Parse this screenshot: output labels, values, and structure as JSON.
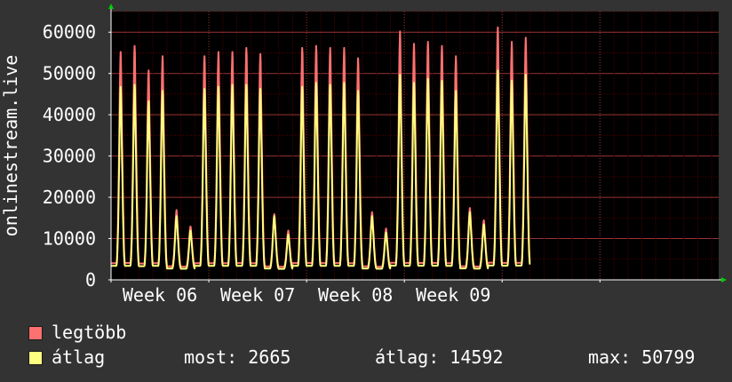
{
  "chart_data": {
    "type": "line",
    "ylabel": "onlinestream.live",
    "ylim": [
      0,
      65000
    ],
    "yticks": [
      0,
      10000,
      20000,
      30000,
      40000,
      50000,
      60000
    ],
    "ytick_labels": [
      "0",
      "10000",
      "20000",
      "30000",
      "40000",
      "50000",
      "60000"
    ],
    "xtick_labels": [
      "Week 06",
      "Week 07",
      "Week 08",
      "Week 09"
    ],
    "x_unit": "day",
    "x_range_days": [
      0,
      43.5
    ],
    "week_label_positions_days": [
      3.5,
      10.5,
      17.5,
      24.5
    ],
    "week_boundaries_days": [
      0,
      7,
      14,
      21,
      28,
      35
    ],
    "grid": true,
    "series": [
      {
        "name": "legtöbb",
        "color": "#ff7070",
        "daily_peaks": [
          55500,
          57000,
          51000,
          54500,
          17000,
          13000,
          54500,
          55500,
          55500,
          56500,
          55000,
          16000,
          12000,
          56500,
          57000,
          56500,
          56500,
          54000,
          16500,
          12500,
          60500,
          57500,
          58000,
          57000,
          54500,
          17500,
          14500,
          61500,
          58000,
          59000
        ],
        "night_low": 3000
      },
      {
        "name": "átlag",
        "color": "#ffff80",
        "daily_peaks": [
          47000,
          47500,
          43500,
          46000,
          15500,
          12000,
          46500,
          47000,
          47500,
          47500,
          46500,
          15500,
          11000,
          47000,
          48000,
          47500,
          48000,
          46000,
          15500,
          11500,
          50000,
          48000,
          49000,
          48500,
          46000,
          16500,
          13500,
          51000,
          48500,
          50000
        ],
        "night_low": 2500
      }
    ]
  },
  "legend": {
    "items": [
      {
        "label": "legtöbb",
        "color": "#ff7070"
      },
      {
        "label": "átlag",
        "color": "#ffff80"
      }
    ],
    "stats": {
      "most": "most: 2665",
      "atlag": "átlag: 14592",
      "max": "max: 50799"
    }
  },
  "colors": {
    "background": "#333333",
    "plot_background": "#000000",
    "grid_minor": "#5a0000",
    "grid_major": "#993333",
    "axis": "#ffffff",
    "axis_arrow": "#00cc00"
  }
}
